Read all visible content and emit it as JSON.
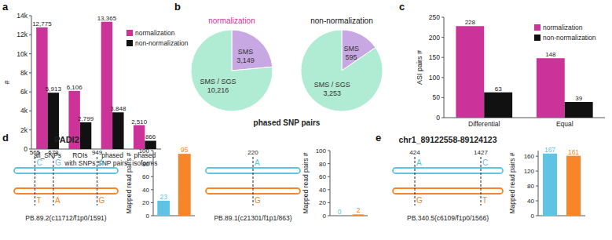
{
  "chart_data": [
    {
      "panel": "a",
      "type": "bar",
      "ylabel": "#",
      "categories": [
        "all_SNPs",
        "ROIs\nwith SNPs",
        "phased\nSNP pairs",
        "phased\nisoforms"
      ],
      "series": [
        {
          "name": "normalization",
          "color": "#cc3399",
          "values": [
            12775,
            6106,
            13365,
            2510
          ],
          "value_labels": [
            "12,775",
            "6,106",
            "13,365",
            "2,510"
          ]
        },
        {
          "name": "non-normalization",
          "color": "#111111",
          "values": [
            5913,
            2799,
            3848,
            866
          ],
          "value_labels": [
            "5,913",
            "2,799",
            "3,848",
            "866"
          ]
        }
      ],
      "ylim": [
        0,
        14000
      ],
      "yticks": [
        0,
        {
          "value": 2000,
          "label": "2k"
        },
        {
          "value": 4000,
          "label": "4k"
        },
        {
          "value": 6000,
          "label": "6k"
        },
        {
          "value": 8000,
          "label": "8k"
        },
        {
          "value": 10000,
          "label": "10k"
        },
        {
          "value": 12000,
          "label": "12k"
        },
        {
          "value": 14000,
          "label": "14k"
        }
      ],
      "legend": "top-right",
      "data_labels": true
    },
    {
      "panel": "b",
      "type": "pie",
      "title": "normalization",
      "color": "#cc3399",
      "caption": "phased SNP pairs",
      "categories": [
        "SMS",
        "SMS / SGS"
      ],
      "values": [
        3149,
        10216
      ],
      "value_labels": [
        "3,149",
        "10,216"
      ],
      "colors": [
        "#c8a8e2",
        "#b0ebd4"
      ],
      "data_labels": true
    },
    {
      "type": "pie",
      "title": "non-normalization",
      "color": "#111111",
      "categories": [
        "SMS",
        "SMS / SGS"
      ],
      "values": [
        595,
        3253
      ],
      "value_labels": [
        "595",
        "3,253"
      ],
      "colors": [
        "#c8a8e2",
        "#b0ebd4"
      ],
      "data_labels": true
    },
    {
      "panel": "c",
      "type": "bar",
      "ylabel": "ASI pairs #",
      "categories": [
        "Differential",
        "Equal"
      ],
      "series": [
        {
          "name": "normalization",
          "color": "#cc3399",
          "values": [
            228,
            148
          ]
        },
        {
          "name": "non-normalization",
          "color": "#111111",
          "values": [
            63,
            39
          ]
        }
      ],
      "ylim": [
        0,
        250
      ],
      "yticks": [
        0,
        50,
        100,
        150,
        200,
        250
      ],
      "legend": "top-right",
      "data_labels": true
    },
    {
      "type": "bar",
      "ylabel": "Mapped read pairs #",
      "categories": [
        null,
        null
      ],
      "values": [
        23,
        95
      ],
      "colors": [
        "#5fc3e4",
        "#f7852a"
      ],
      "ylim": [
        0,
        100
      ],
      "yticks": [
        0,
        20,
        40,
        60,
        80,
        100
      ],
      "data_labels": true
    },
    {
      "type": "bar",
      "ylabel": "Mapped read pairs #",
      "categories": [
        null,
        null
      ],
      "values": [
        0,
        2
      ],
      "colors": [
        "#5fc3e4",
        "#f7852a"
      ],
      "ylim": [
        0,
        100
      ],
      "yticks": [
        0,
        20,
        40,
        60,
        80,
        100
      ],
      "data_labels": true
    },
    {
      "type": "bar",
      "ylabel": "Mapped read pairs #",
      "categories": [
        null,
        null
      ],
      "values": [
        167,
        161
      ],
      "colors": [
        "#5fc3e4",
        "#f7852a"
      ],
      "ylim": [
        0,
        175
      ],
      "yticks": [
        0,
        40,
        80,
        120,
        160
      ],
      "data_labels": true
    }
  ],
  "diagrams": [
    {
      "panel": "d",
      "title": "PADI2",
      "isoforms": [
        {
          "id": "PB.89.2(c11712/f1p0/1591)",
          "positions": [
            565,
            679,
            949
          ],
          "alleles_top": [
            "C",
            "G",
            "A"
          ],
          "alleles_bottom": [
            "T",
            "A",
            "G"
          ]
        },
        {
          "id": "PB.89.1(c21301/f1p1/863)",
          "positions": [
            220
          ],
          "alleles_top": [
            "A"
          ],
          "alleles_bottom": [
            "G"
          ]
        }
      ]
    },
    {
      "panel": "e",
      "title": "chr1_89122558-89124123",
      "isoforms": [
        {
          "id": "PB.340.5(c6109/f1p0/1566)",
          "positions": [
            424,
            1427
          ],
          "alleles_top": [
            "A",
            "C"
          ],
          "alleles_bottom": [
            "G",
            "T"
          ]
        }
      ]
    }
  ]
}
